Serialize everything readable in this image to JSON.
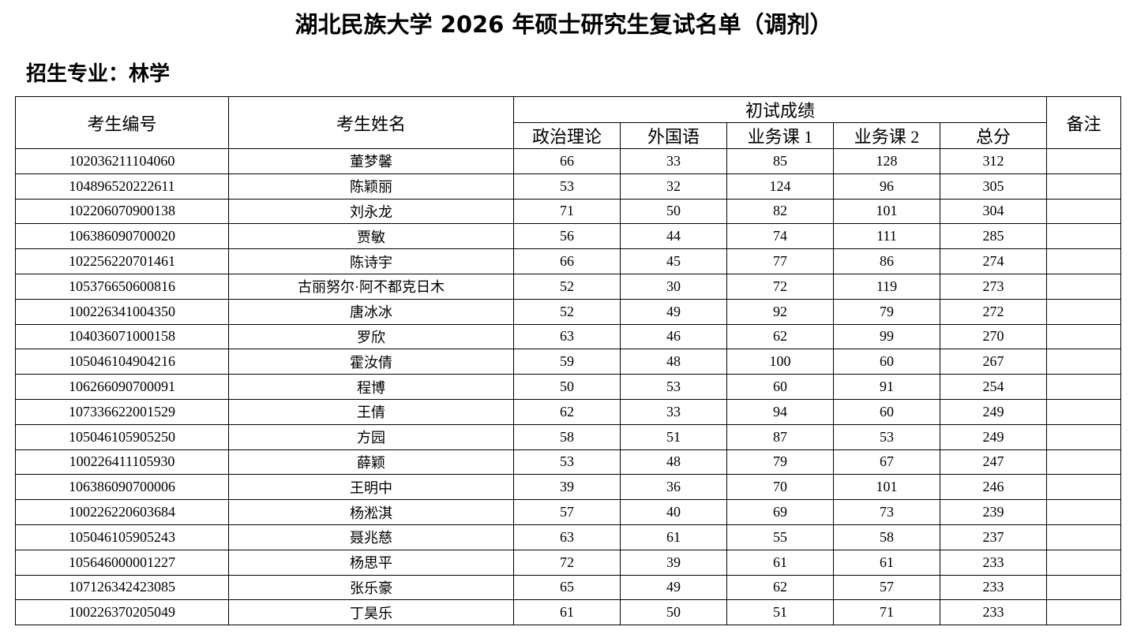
{
  "title": "湖北民族大学 2026 年硕士研究生复试名单（调剂）",
  "subtitle": "招生专业：林学",
  "table": {
    "header_top": [
      "考生编号",
      "考生姓名",
      "初试成绩",
      "备注"
    ],
    "header_sub": [
      "政治理论",
      "外国语",
      "业务课 1",
      "业务课 2",
      "总分"
    ],
    "rows": [
      [
        "102036211104060",
        "董梦馨",
        66,
        33,
        85,
        128,
        312
      ],
      [
        "104896520222611",
        "陈颖丽",
        53,
        32,
        124,
        96,
        305
      ],
      [
        "102206070900138",
        "刘永龙",
        71,
        50,
        82,
        101,
        304
      ],
      [
        "106386090700020",
        "贾敏",
        56,
        44,
        74,
        111,
        285
      ],
      [
        "102256220701461",
        "陈诗宇",
        66,
        45,
        77,
        86,
        274
      ],
      [
        "105376650600816",
        "古丽努尔·阿不都克日木",
        52,
        30,
        72,
        119,
        273
      ],
      [
        "100226341004350",
        "唐冰冰",
        52,
        49,
        92,
        79,
        272
      ],
      [
        "104036071000158",
        "罗欣",
        63,
        46,
        62,
        99,
        270
      ],
      [
        "105046104904216",
        "霍汝倩",
        59,
        48,
        100,
        60,
        267
      ],
      [
        "106266090700091",
        "程博",
        50,
        53,
        60,
        91,
        254
      ],
      [
        "107336622001529",
        "王倩",
        62,
        33,
        94,
        60,
        249
      ],
      [
        "105046105905250",
        "方园",
        58,
        51,
        87,
        53,
        249
      ],
      [
        "100226411105930",
        "薛颖",
        53,
        48,
        79,
        67,
        247
      ],
      [
        "106386090700006",
        "王明中",
        39,
        36,
        70,
        101,
        246
      ],
      [
        "100226220603684",
        "杨淞淇",
        57,
        40,
        69,
        73,
        239
      ],
      [
        "105046105905243",
        "聂兆慈",
        63,
        61,
        55,
        58,
        237
      ],
      [
        "105646000001227",
        "杨思平",
        72,
        39,
        61,
        61,
        233
      ],
      [
        "107126342423085",
        "张乐豪",
        65,
        49,
        62,
        57,
        233
      ],
      [
        "100226370205049",
        "丁昊乐",
        61,
        50,
        51,
        71,
        233
      ]
    ]
  }
}
